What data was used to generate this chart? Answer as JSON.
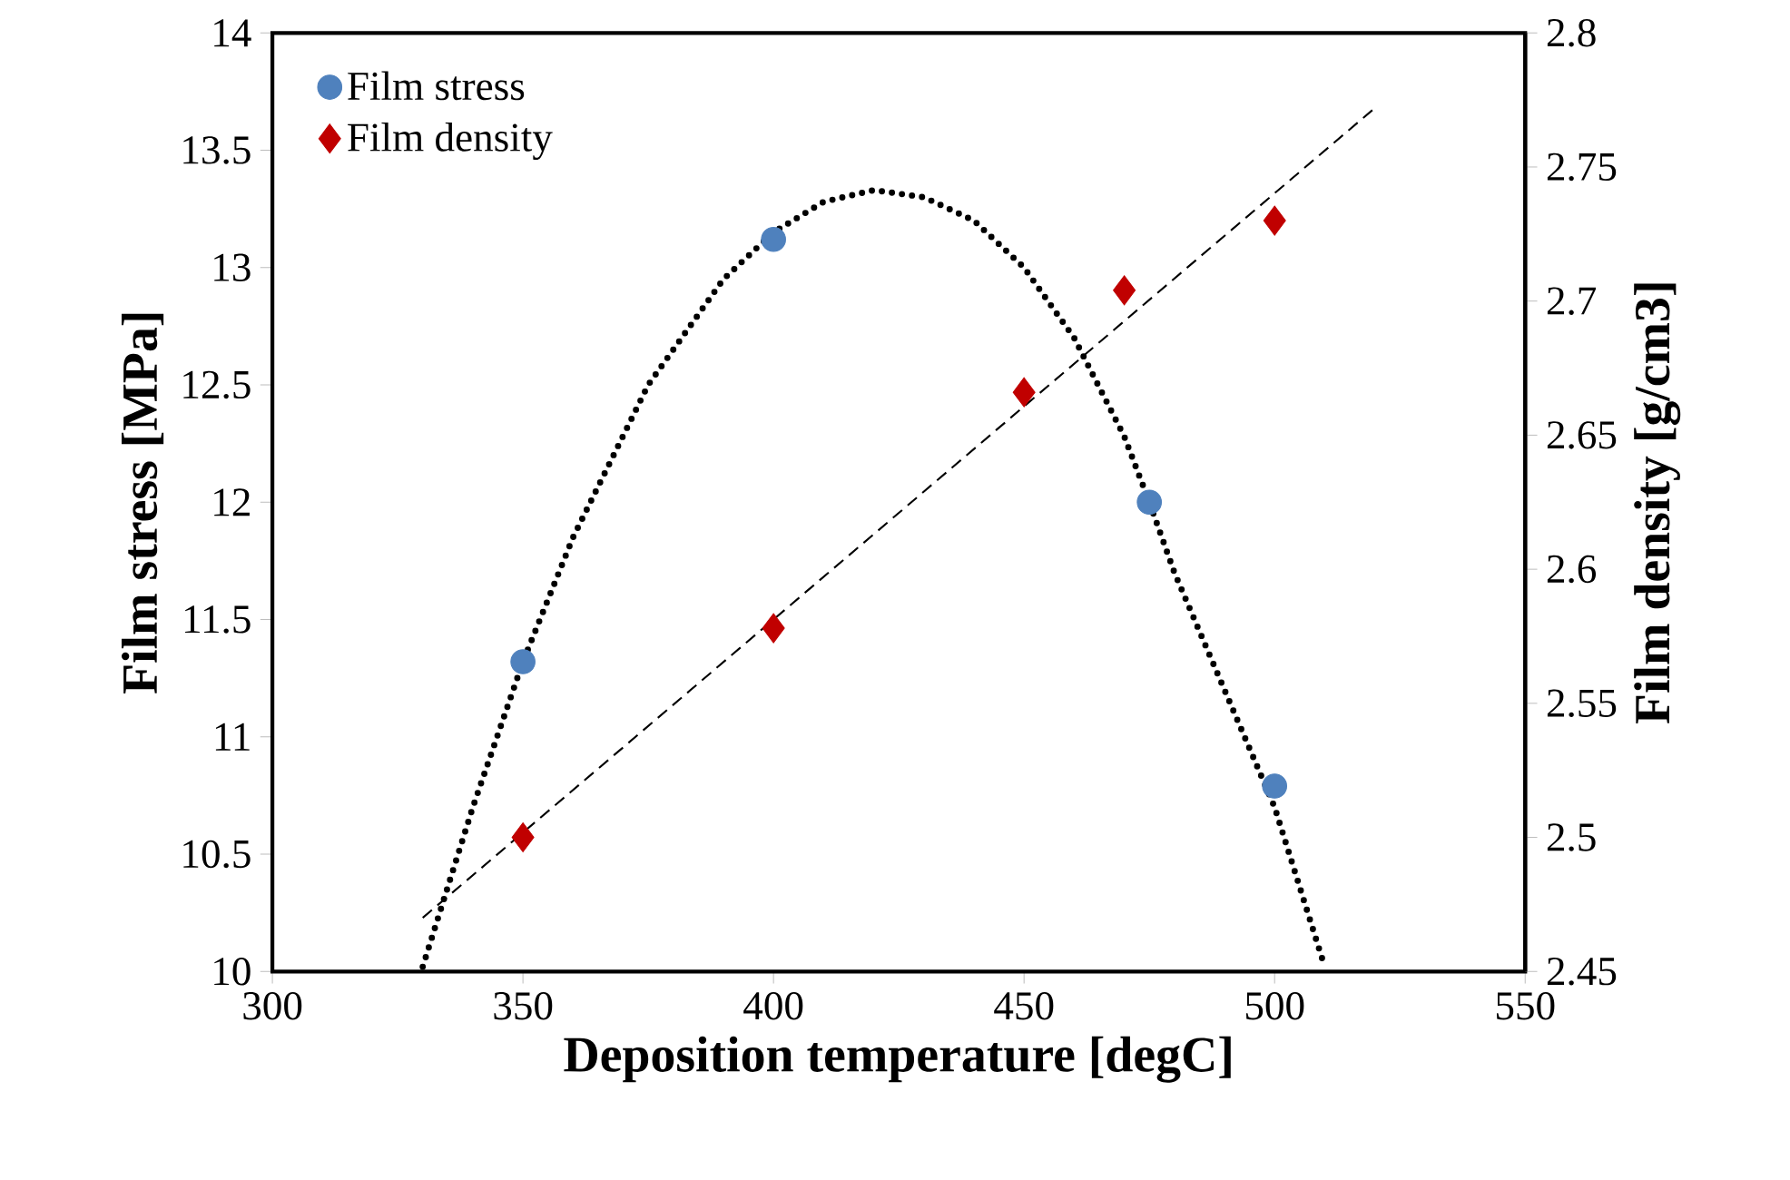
{
  "chart_data": {
    "type": "scatter",
    "xlabel": "Deposition temperature [degC]",
    "ylabel": "Film stress [MPa]",
    "y2label": "Film density [g/cm3]",
    "xlim": [
      300,
      550
    ],
    "xticks": [
      300,
      350,
      400,
      450,
      500,
      550
    ],
    "ylim": [
      10,
      14
    ],
    "yticks": [
      10,
      10.5,
      11,
      11.5,
      12,
      12.5,
      13,
      13.5,
      14
    ],
    "y2lim": [
      2.45,
      2.8
    ],
    "y2ticks": [
      2.45,
      2.5,
      2.55,
      2.6,
      2.65,
      2.7,
      2.75,
      2.8
    ],
    "legend": "top left",
    "grid": false,
    "series": [
      {
        "name": "Film stress",
        "color": "#4f81bd",
        "marker": "circle",
        "x": [
          350,
          400,
          475,
          500
        ],
        "values": [
          11.32,
          13.12,
          12.0,
          10.79
        ]
      },
      {
        "name": "Film density",
        "color": "#c00000",
        "marker": "diamond",
        "axis": "y2",
        "x": [
          350,
          400,
          450,
          470,
          500
        ],
        "values": [
          2.5,
          2.578,
          2.666,
          2.704,
          2.73
        ]
      },
      {
        "type": "line",
        "color": "#000000",
        "marker": "none",
        "line_style": "dotted",
        "x": [
          330,
          340,
          350,
          360,
          375,
          390,
          400,
          410,
          420,
          430,
          440,
          450,
          460,
          470,
          475,
          480,
          490,
          500,
          510
        ],
        "values": [
          10.02,
          10.7,
          11.32,
          11.85,
          12.5,
          12.95,
          13.15,
          13.28,
          13.33,
          13.3,
          13.2,
          13.0,
          12.7,
          12.28,
          12.0,
          11.7,
          11.2,
          10.7,
          10.02
        ]
      },
      {
        "type": "line",
        "color": "#000000",
        "marker": "none",
        "line_style": "dashed",
        "axis": "y2",
        "x": [
          330,
          520
        ],
        "values": [
          2.47,
          2.772
        ]
      }
    ]
  }
}
